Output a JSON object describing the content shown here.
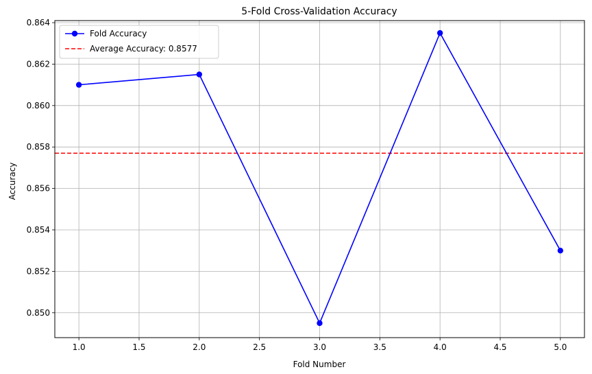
{
  "chart_data": {
    "type": "line",
    "title": "5-Fold Cross-Validation Accuracy",
    "xlabel": "Fold Number",
    "ylabel": "Accuracy",
    "xlim": [
      0.8,
      5.2
    ],
    "ylim": [
      0.8488,
      0.8641
    ],
    "xticks": [
      1.0,
      1.5,
      2.0,
      2.5,
      3.0,
      3.5,
      4.0,
      4.5,
      5.0
    ],
    "xtick_labels": [
      "1.0",
      "1.5",
      "2.0",
      "2.5",
      "3.0",
      "3.5",
      "4.0",
      "4.5",
      "5.0"
    ],
    "yticks": [
      0.85,
      0.852,
      0.854,
      0.856,
      0.858,
      0.86,
      0.862,
      0.864
    ],
    "ytick_labels": [
      "0.850",
      "0.852",
      "0.854",
      "0.856",
      "0.858",
      "0.860",
      "0.862",
      "0.864"
    ],
    "grid": true,
    "legend_position": "top-left",
    "series": [
      {
        "name": "Fold Accuracy",
        "color": "#0000ff",
        "style": "solid",
        "marker": "circle",
        "x": [
          1,
          2,
          3,
          4,
          5
        ],
        "y": [
          0.861,
          0.8615,
          0.8495,
          0.8635,
          0.853
        ]
      }
    ],
    "hlines": [
      {
        "name": "Average Accuracy: 0.8577",
        "color": "#ff0000",
        "style": "dashed",
        "y": 0.8577
      }
    ]
  }
}
